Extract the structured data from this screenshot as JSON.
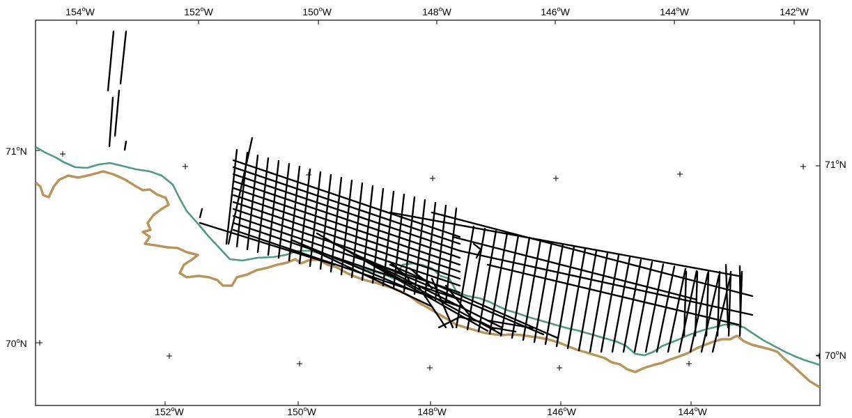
{
  "map": {
    "colors": {
      "background": "#ffffff",
      "frame": "#000000",
      "coastline": "#b8955a",
      "shelf_contour": "#4f9a84",
      "tracklines": "#000000",
      "grid_marks": "#000000"
    },
    "top_lon_labels": [
      {
        "deg": "154",
        "hemi": "W"
      },
      {
        "deg": "152",
        "hemi": "W"
      },
      {
        "deg": "150",
        "hemi": "W"
      },
      {
        "deg": "148",
        "hemi": "W"
      },
      {
        "deg": "146",
        "hemi": "W"
      },
      {
        "deg": "144",
        "hemi": "W"
      },
      {
        "deg": "142",
        "hemi": "W"
      }
    ],
    "bottom_lon_labels": [
      {
        "deg": "152",
        "hemi": "W"
      },
      {
        "deg": "150",
        "hemi": "W"
      },
      {
        "deg": "148",
        "hemi": "W"
      },
      {
        "deg": "146",
        "hemi": "W"
      },
      {
        "deg": "144",
        "hemi": "W"
      }
    ],
    "left_lat_labels": [
      {
        "deg": "71",
        "hemi": "N"
      },
      {
        "deg": "70",
        "hemi": "N"
      }
    ],
    "right_lat_labels": [
      {
        "deg": "71",
        "hemi": "N"
      },
      {
        "deg": "70",
        "hemi": "N"
      }
    ],
    "degree_symbol": "o"
  }
}
